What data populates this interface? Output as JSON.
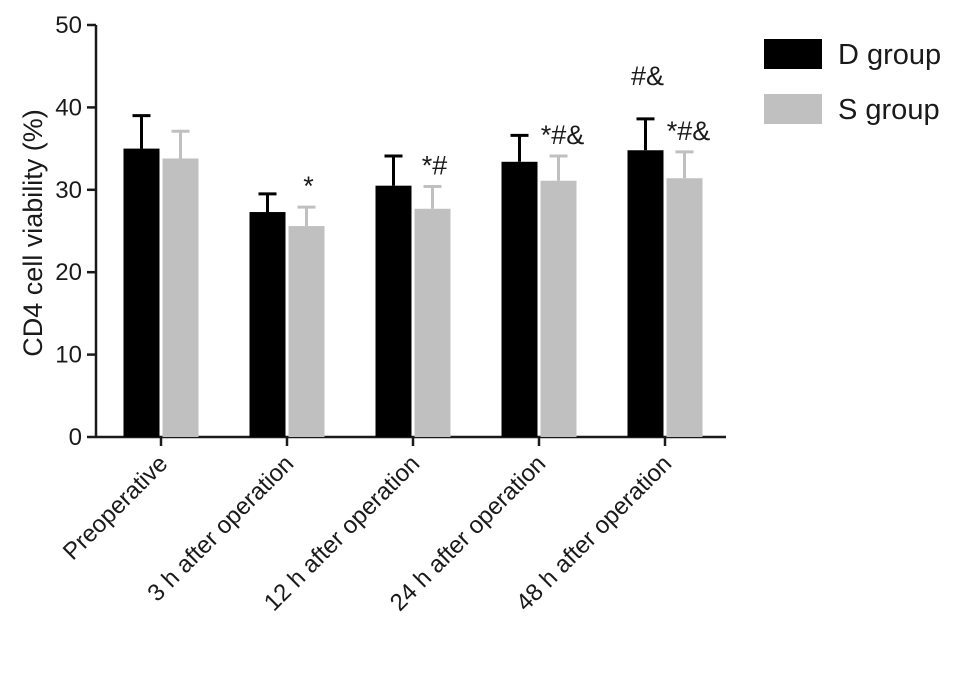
{
  "chart_data": {
    "type": "bar",
    "ylabel": "CD4 cell viability  (%)",
    "ylim": [
      0,
      50
    ],
    "yticks": [
      0,
      10,
      20,
      30,
      40,
      50
    ],
    "categories": [
      "Preoperative",
      "3 h after operation",
      "12 h after operation",
      "24 h after operation",
      "48 h after operation"
    ],
    "series": [
      {
        "name": "D group",
        "color": "#000000",
        "values": [
          35.0,
          27.3,
          30.5,
          33.4,
          34.8
        ],
        "errors": [
          4.0,
          2.2,
          3.6,
          3.2,
          3.8
        ],
        "annotations": [
          "",
          "",
          "",
          "",
          "#&"
        ]
      },
      {
        "name": "S group",
        "color": "#c0c0c0",
        "values": [
          33.8,
          25.6,
          27.7,
          31.1,
          31.4
        ],
        "errors": [
          3.3,
          2.3,
          2.7,
          3.0,
          3.2
        ],
        "annotations": [
          "",
          "*",
          "*#",
          "*#&",
          "*#&"
        ]
      }
    ],
    "legend_position": "top-right",
    "grid": false
  }
}
